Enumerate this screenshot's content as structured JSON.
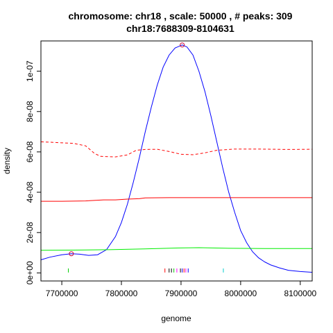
{
  "chart_data": {
    "type": "line",
    "title": "chromosome: chr18 , scale: 50000 , # peaks: 309",
    "subtitle": "chr18:7688309-8104631",
    "xlabel": "genome",
    "ylabel": "density",
    "xlim": [
      7665000,
      8120000
    ],
    "ylim": [
      -4e-09,
      1.15e-07
    ],
    "x_ticks": [
      7700000,
      7800000,
      7900000,
      8000000,
      8100000
    ],
    "x_tick_labels": [
      "7700000",
      "7800000",
      "7900000",
      "8000000",
      "8100000"
    ],
    "y_ticks": [
      0,
      2e-08,
      4e-08,
      6e-08,
      8e-08,
      1e-07
    ],
    "y_tick_labels": [
      "0e+00",
      "2e-08",
      "4e-08",
      "6e-08",
      "8e-08",
      "1e-07"
    ],
    "grid": false,
    "series": [
      {
        "color": "#0000ff",
        "dash": "solid",
        "points": [
          [
            7665000,
            6.5e-09
          ],
          [
            7680000,
            7.8e-09
          ],
          [
            7700000,
            9e-09
          ],
          [
            7716000,
            9.5e-09
          ],
          [
            7730000,
            9.3e-09
          ],
          [
            7745000,
            8.7e-09
          ],
          [
            7760000,
            9e-09
          ],
          [
            7775000,
            1.15e-08
          ],
          [
            7790000,
            1.8e-08
          ],
          [
            7800000,
            2.5e-08
          ],
          [
            7810000,
            3.4e-08
          ],
          [
            7820000,
            4.5e-08
          ],
          [
            7830000,
            5.7e-08
          ],
          [
            7840000,
            7e-08
          ],
          [
            7850000,
            8.2e-08
          ],
          [
            7860000,
            9.3e-08
          ],
          [
            7870000,
            1.02e-07
          ],
          [
            7880000,
            1.08e-07
          ],
          [
            7890000,
            1.115e-07
          ],
          [
            7902000,
            1.13e-07
          ],
          [
            7910000,
            1.12e-07
          ],
          [
            7920000,
            1.08e-07
          ],
          [
            7930000,
            1e-07
          ],
          [
            7940000,
            9e-08
          ],
          [
            7950000,
            7.8e-08
          ],
          [
            7960000,
            6.5e-08
          ],
          [
            7970000,
            5.2e-08
          ],
          [
            7980000,
            4e-08
          ],
          [
            7990000,
            3e-08
          ],
          [
            8000000,
            2.1e-08
          ],
          [
            8010000,
            1.5e-08
          ],
          [
            8020000,
            1.05e-08
          ],
          [
            8030000,
            7.5e-09
          ],
          [
            8040000,
            5.5e-09
          ],
          [
            8050000,
            4e-09
          ],
          [
            8065000,
            2.5e-09
          ],
          [
            8080000,
            1.3e-09
          ],
          [
            8100000,
            7e-10
          ],
          [
            8120000,
            3e-10
          ]
        ]
      },
      {
        "color": "#ff0000",
        "dash": "solid",
        "points": [
          [
            7665000,
            3.55e-08
          ],
          [
            7700000,
            3.55e-08
          ],
          [
            7740000,
            3.57e-08
          ],
          [
            7770000,
            3.62e-08
          ],
          [
            7790000,
            3.62e-08
          ],
          [
            7810000,
            3.66e-08
          ],
          [
            7830000,
            3.68e-08
          ],
          [
            7840000,
            3.72e-08
          ],
          [
            7880000,
            3.73e-08
          ],
          [
            7950000,
            3.73e-08
          ],
          [
            8050000,
            3.73e-08
          ],
          [
            8120000,
            3.73e-08
          ]
        ]
      },
      {
        "color": "#ff0000",
        "dash": "dashed",
        "points": [
          [
            7665000,
            6.5e-08
          ],
          [
            7700000,
            6.45e-08
          ],
          [
            7720000,
            6.42e-08
          ],
          [
            7740000,
            6.3e-08
          ],
          [
            7755000,
            5.92e-08
          ],
          [
            7765000,
            5.78e-08
          ],
          [
            7790000,
            5.75e-08
          ],
          [
            7810000,
            5.85e-08
          ],
          [
            7825000,
            6.08e-08
          ],
          [
            7840000,
            6.12e-08
          ],
          [
            7860000,
            6.13e-08
          ],
          [
            7880000,
            6.02e-08
          ],
          [
            7900000,
            5.88e-08
          ],
          [
            7920000,
            5.86e-08
          ],
          [
            7940000,
            5.95e-08
          ],
          [
            7960000,
            6.08e-08
          ],
          [
            7990000,
            6.14e-08
          ],
          [
            8030000,
            6.14e-08
          ],
          [
            8080000,
            6.12e-08
          ],
          [
            8120000,
            6.13e-08
          ]
        ]
      },
      {
        "color": "#00ee00",
        "dash": "solid",
        "points": [
          [
            7665000,
            1.12e-08
          ],
          [
            7720000,
            1.13e-08
          ],
          [
            7780000,
            1.15e-08
          ],
          [
            7840000,
            1.19e-08
          ],
          [
            7900000,
            1.24e-08
          ],
          [
            7930000,
            1.25e-08
          ],
          [
            7980000,
            1.22e-08
          ],
          [
            8040000,
            1.21e-08
          ],
          [
            8120000,
            1.21e-08
          ]
        ]
      }
    ],
    "peak_markers": [
      {
        "x": 7716000,
        "y": 9.5e-09,
        "color": "#cc0033"
      },
      {
        "x": 7902000,
        "y": 1.13e-07,
        "color": "#cc0033"
      }
    ],
    "rug": [
      {
        "x": 7711000,
        "color": "#00cc00"
      },
      {
        "x": 7873000,
        "color": "#ff0000"
      },
      {
        "x": 7880000,
        "color": "#000000"
      },
      {
        "x": 7884000,
        "color": "#000000"
      },
      {
        "x": 7888000,
        "color": "#00cc00"
      },
      {
        "x": 7893000,
        "color": "#ff00ff"
      },
      {
        "x": 7899000,
        "color": "#000000"
      },
      {
        "x": 7902000,
        "color": "#0000ff"
      },
      {
        "x": 7905000,
        "color": "#ff0000"
      },
      {
        "x": 7908000,
        "color": "#ff00ff"
      },
      {
        "x": 7912000,
        "color": "#0000ff"
      },
      {
        "x": 7971000,
        "color": "#00cccc"
      }
    ]
  }
}
